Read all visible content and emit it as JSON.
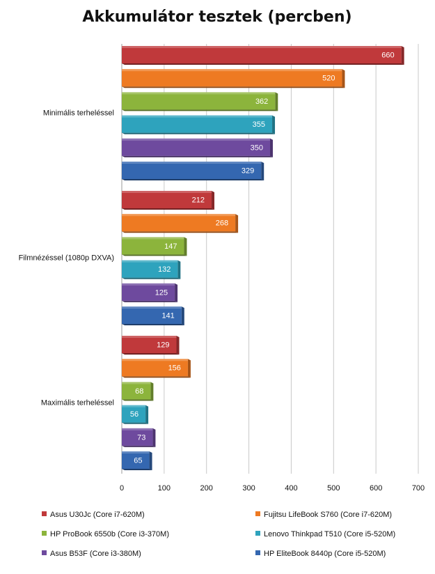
{
  "chart_data": {
    "type": "bar",
    "orientation": "horizontal",
    "title": "Akkumulátor tesztek (percben)",
    "categories": [
      "Minimális terheléssel",
      "Filmnézéssel (1080p DXVA)",
      "Maximális terheléssel"
    ],
    "xlim": [
      0,
      700
    ],
    "xticks": [
      0,
      100,
      200,
      300,
      400,
      500,
      600,
      700
    ],
    "grid": true,
    "legend_position": "bottom",
    "series": [
      {
        "name": "Asus U30Jc (Core i7-620M)",
        "color": "#c0393b",
        "values": [
          660,
          212,
          129
        ]
      },
      {
        "name": "Fujitsu LifeBook S760 (Core i7-620M)",
        "color": "#ee7a22",
        "values": [
          520,
          268,
          156
        ]
      },
      {
        "name": "HP ProBook 6550b (Core i3-370M)",
        "color": "#8cb43c",
        "values": [
          362,
          147,
          68
        ]
      },
      {
        "name": "Lenovo Thinkpad T510 (Core i5-520M)",
        "color": "#2ea3bd",
        "values": [
          355,
          132,
          56
        ]
      },
      {
        "name": "Asus B53F (Core i3-380M)",
        "color": "#6e4a9e",
        "values": [
          350,
          125,
          73
        ]
      },
      {
        "name": "HP EliteBook 8440p (Core i5-520M)",
        "color": "#3467b0",
        "values": [
          329,
          141,
          65
        ]
      }
    ]
  }
}
